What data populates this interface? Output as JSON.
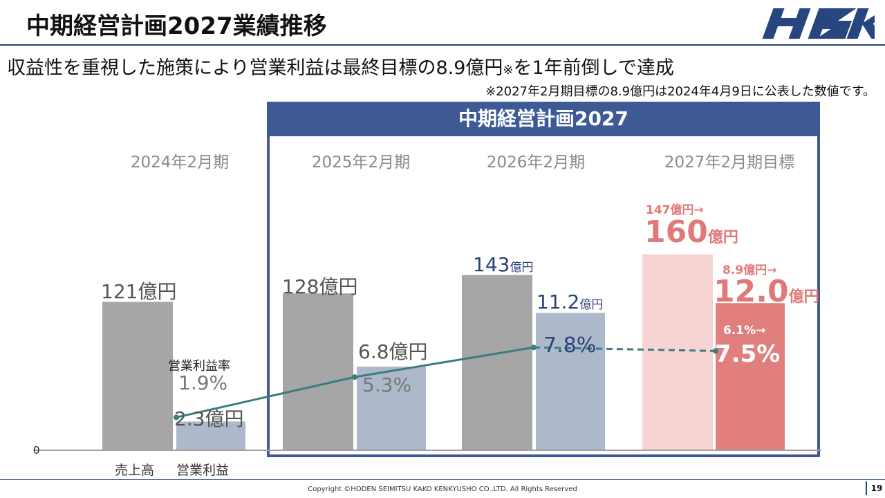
{
  "header": {
    "title": "中期経営計画2027業績推移",
    "logo_text": "HSK",
    "brand_color": "#27457e"
  },
  "subtitle": {
    "text": "収益性を重視した施策により営業利益は最終目標の8.9億円",
    "mark": "※",
    "text_after": "を1年前倒しで達成"
  },
  "footnote": "※2027年2月期目標の8.9億円は2024年4月9日に公表した数値です。",
  "plan_box": {
    "title": "中期経営計画2027",
    "color": "#3d5a95"
  },
  "chart_data": {
    "type": "bar",
    "categories": [
      "2024年2月期",
      "2025年2月期",
      "2026年2月期",
      "2027年2月期目標"
    ],
    "ylim": [
      0,
      170
    ],
    "zero_label": "0",
    "series": [
      {
        "name": "売上高",
        "values": [
          121,
          128,
          143,
          160
        ],
        "labels": [
          {
            "value": "121",
            "unit": "億円"
          },
          {
            "value": "128",
            "unit": "億円"
          },
          {
            "value": "143",
            "unit": "億円"
          },
          {
            "value": "160",
            "unit": "億円",
            "previous": "147億円→"
          }
        ],
        "colors": [
          "#a6a6a6",
          "#a6a6a6",
          "#a6a6a6",
          "#f6d4d3"
        ]
      },
      {
        "name": "営業利益",
        "values": [
          2.3,
          6.8,
          11.2,
          12.0
        ],
        "display_scale_max": 17.0,
        "labels": [
          {
            "value": "2.3",
            "unit": "億円"
          },
          {
            "value": "6.8",
            "unit": "億円"
          },
          {
            "value": "11.2",
            "unit": "億円"
          },
          {
            "value": "12.0",
            "unit": "億円",
            "previous": "8.9億円→"
          }
        ],
        "colors": [
          "#adb9cb",
          "#adb9cb",
          "#adb9cb",
          "#e07f7d"
        ]
      },
      {
        "name": "営業利益率",
        "type": "line",
        "values": [
          1.9,
          5.3,
          7.8,
          7.5
        ],
        "labels": [
          "1.9%",
          "5.3%",
          "7.8%",
          "7.5%"
        ],
        "target_previous": "6.1%→",
        "color": "#3a7d7f",
        "last_segment_dashed": true
      }
    ],
    "x_labels": [
      "売上高",
      "営業利益"
    ],
    "margin_label": "営業利益率"
  },
  "footer": {
    "copyright": "Copyright ©HODEN SEIMITSU KAKO KENKYUSHO CO.,LTD. All Rights Reserved",
    "page": "19"
  }
}
